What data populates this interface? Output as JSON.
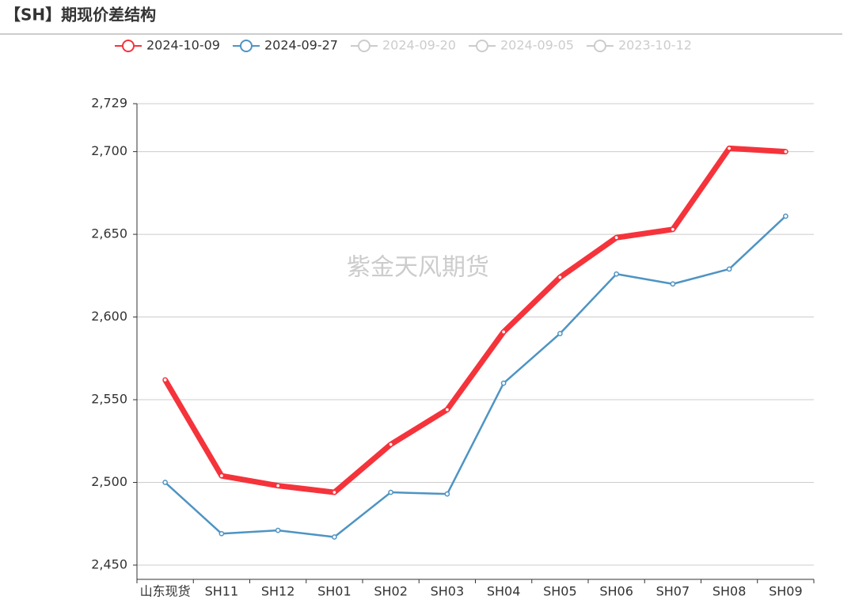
{
  "chart_data": {
    "type": "line",
    "title": "【SH】期现价差结构",
    "watermark": "紫金天风期货",
    "categories": [
      "山东现货",
      "SH11",
      "SH12",
      "SH01",
      "SH02",
      "SH03",
      "SH04",
      "SH05",
      "SH06",
      "SH07",
      "SH08",
      "SH09"
    ],
    "series": [
      {
        "name": "2024-10-09",
        "color": "#f5333b",
        "values": [
          2562,
          2504,
          2498,
          2494,
          2523,
          2544,
          2591,
          2624,
          2648,
          2653,
          2702,
          2700
        ]
      },
      {
        "name": "2024-09-27",
        "color": "#4e94c3",
        "values": [
          2500,
          2469,
          2471,
          2467,
          2494,
          2493,
          2560,
          2590,
          2626,
          2620,
          2629,
          2661
        ]
      }
    ],
    "inactive_series": [
      "2024-09-20",
      "2024-09-05",
      "2023-10-12"
    ],
    "inactive_color": "#cccccc",
    "ylim": [
      2450,
      2729
    ],
    "yticks": [
      {
        "value": 2450,
        "label": "2,450"
      },
      {
        "value": 2500,
        "label": "2,500"
      },
      {
        "value": 2550,
        "label": "2,550"
      },
      {
        "value": 2600,
        "label": "2,600"
      },
      {
        "value": 2650,
        "label": "2,650"
      },
      {
        "value": 2700,
        "label": "2,700"
      },
      {
        "value": 2729,
        "label": "2,729"
      }
    ],
    "grid": true
  }
}
